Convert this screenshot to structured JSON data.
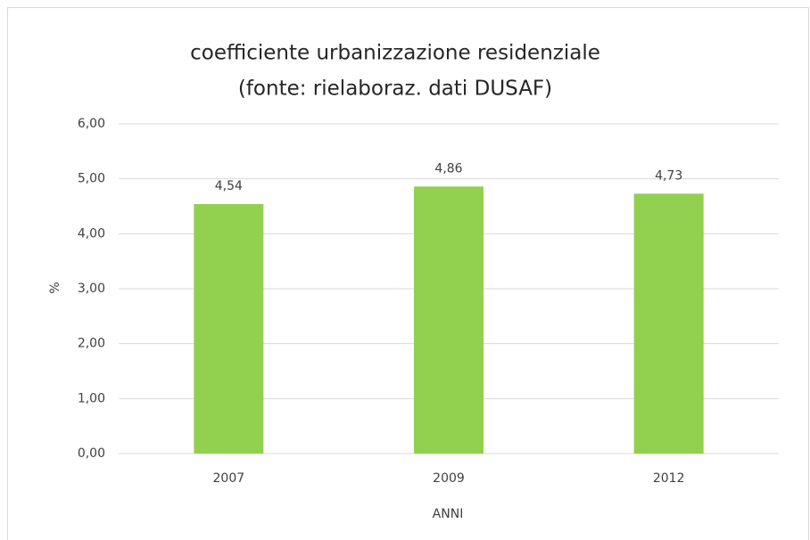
{
  "chart_data": {
    "type": "bar",
    "title": [
      "coefficiente urbanizzazione residenziale",
      "(fonte: rielaboraz. dati DUSAF)"
    ],
    "xlabel": "ANNI",
    "ylabel": "%",
    "categories": [
      "2007",
      "2009",
      "2012"
    ],
    "values": [
      4.54,
      4.86,
      4.73
    ],
    "value_labels": [
      "4,54",
      "4,86",
      "4,73"
    ],
    "color": "#92d050",
    "ylim": [
      0,
      6
    ],
    "yticks": [
      {
        "value": 0,
        "label": "0,00"
      },
      {
        "value": 1,
        "label": "1,00"
      },
      {
        "value": 2,
        "label": "2,00"
      },
      {
        "value": 3,
        "label": "3,00"
      },
      {
        "value": 4,
        "label": "4,00"
      },
      {
        "value": 5,
        "label": "5,00"
      },
      {
        "value": 6,
        "label": "6,00"
      }
    ],
    "grid": true
  }
}
